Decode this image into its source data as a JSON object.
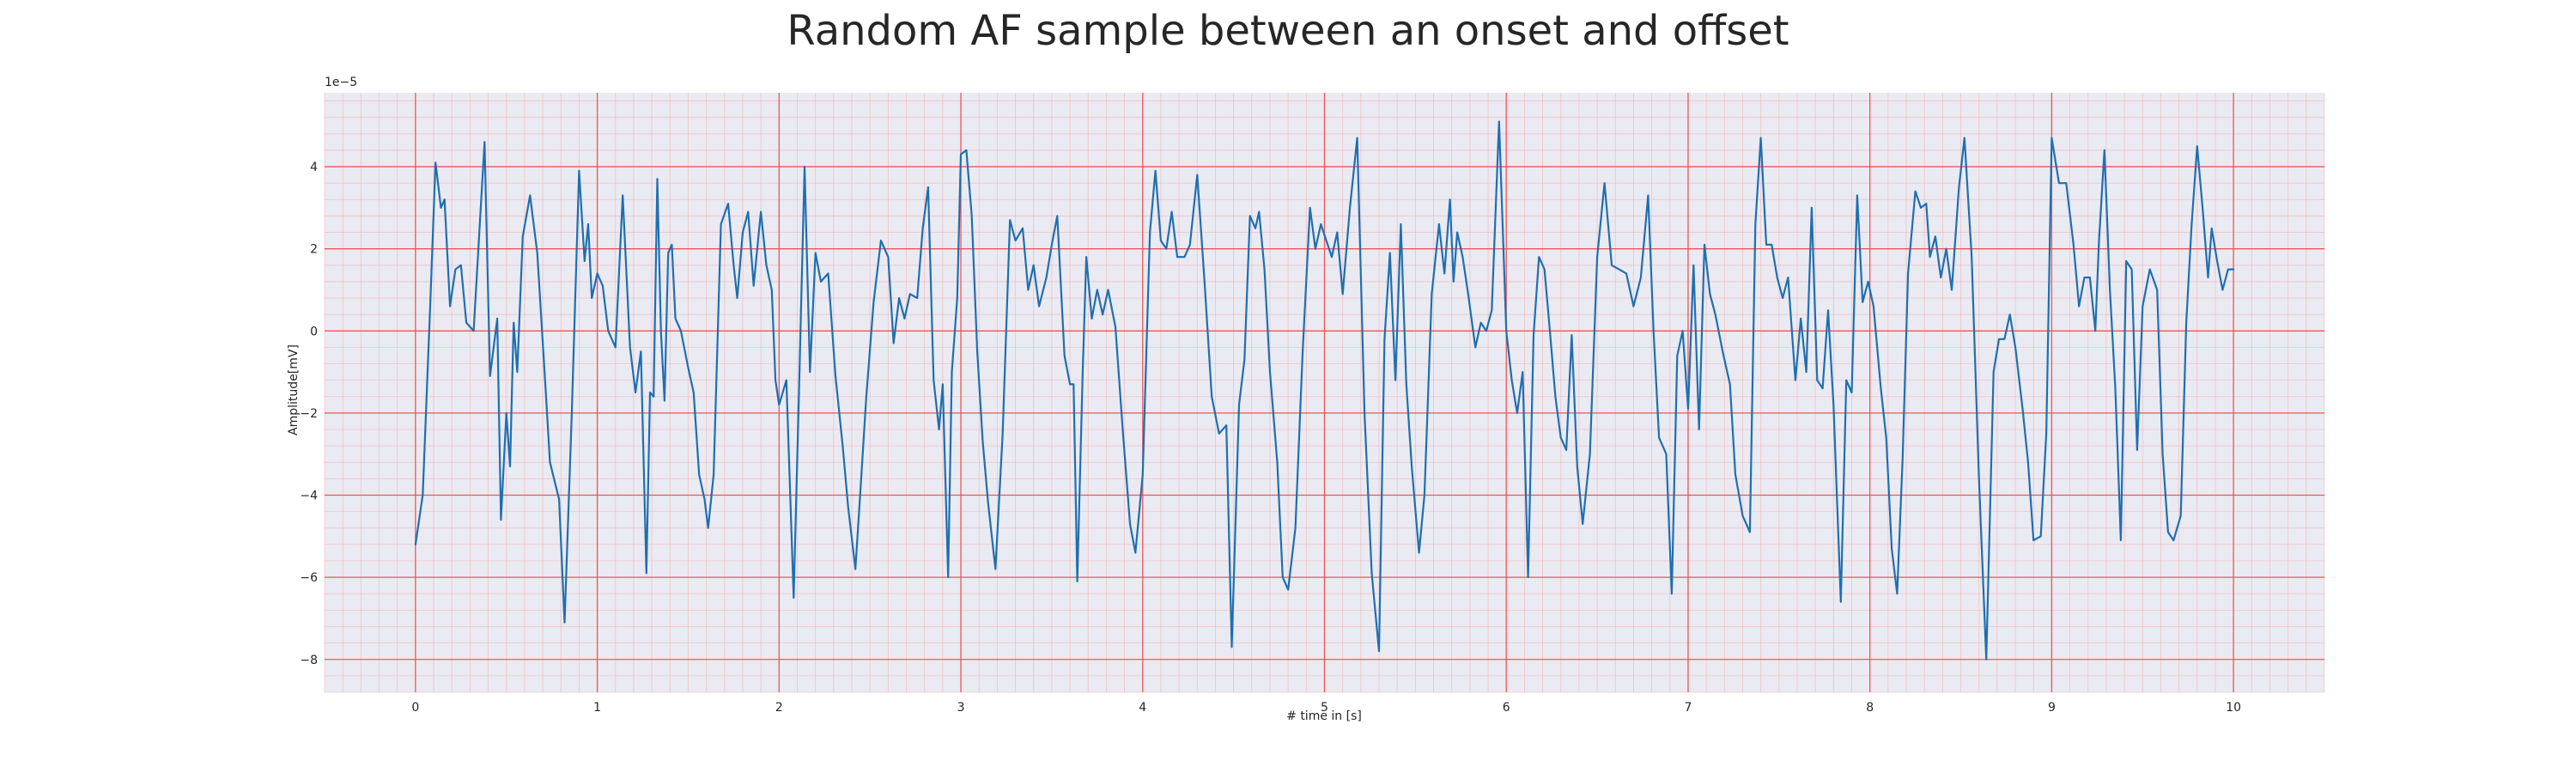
{
  "chart_data": {
    "type": "line",
    "title": "Random AF sample between an onset and offset",
    "xlabel": "# time in [s]",
    "ylabel": "Amplitude[mV]",
    "y_offset_label": "1e−5",
    "xlim": [
      -0.5,
      10.5
    ],
    "ylim": [
      -8.8,
      5.8
    ],
    "x_ticks": [
      0,
      1,
      2,
      3,
      4,
      5,
      6,
      7,
      8,
      9,
      10
    ],
    "y_ticks": [
      -8,
      -6,
      -4,
      -2,
      0,
      2,
      4
    ],
    "grid": true,
    "series": [
      {
        "color": "#1f6fb0",
        "points": [
          [
            0.0,
            -5.2
          ],
          [
            0.04,
            -4.0
          ],
          [
            0.08,
            0.5
          ],
          [
            0.11,
            4.1
          ],
          [
            0.14,
            3.0
          ],
          [
            0.16,
            3.2
          ],
          [
            0.19,
            0.6
          ],
          [
            0.22,
            1.5
          ],
          [
            0.25,
            1.6
          ],
          [
            0.28,
            0.2
          ],
          [
            0.32,
            0.0
          ],
          [
            0.38,
            4.6
          ],
          [
            0.41,
            -1.1
          ],
          [
            0.45,
            0.3
          ],
          [
            0.47,
            -4.6
          ],
          [
            0.5,
            -2.0
          ],
          [
            0.52,
            -3.3
          ],
          [
            0.54,
            0.2
          ],
          [
            0.56,
            -1.0
          ],
          [
            0.59,
            2.3
          ],
          [
            0.63,
            3.3
          ],
          [
            0.67,
            1.9
          ],
          [
            0.71,
            -1.0
          ],
          [
            0.74,
            -3.2
          ],
          [
            0.79,
            -4.1
          ],
          [
            0.82,
            -7.1
          ],
          [
            0.86,
            -2.0
          ],
          [
            0.9,
            3.9
          ],
          [
            0.93,
            1.7
          ],
          [
            0.95,
            2.6
          ],
          [
            0.97,
            0.8
          ],
          [
            1.0,
            1.4
          ],
          [
            1.03,
            1.1
          ],
          [
            1.06,
            0.0
          ],
          [
            1.1,
            -0.4
          ],
          [
            1.14,
            3.3
          ],
          [
            1.18,
            -0.4
          ],
          [
            1.21,
            -1.5
          ],
          [
            1.24,
            -0.5
          ],
          [
            1.27,
            -5.9
          ],
          [
            1.29,
            -1.5
          ],
          [
            1.31,
            -1.6
          ],
          [
            1.33,
            3.7
          ],
          [
            1.35,
            0.0
          ],
          [
            1.37,
            -1.7
          ],
          [
            1.39,
            1.9
          ],
          [
            1.41,
            2.1
          ],
          [
            1.43,
            0.3
          ],
          [
            1.46,
            0.0
          ],
          [
            1.5,
            -0.9
          ],
          [
            1.53,
            -1.5
          ],
          [
            1.56,
            -3.5
          ],
          [
            1.59,
            -4.1
          ],
          [
            1.61,
            -4.8
          ],
          [
            1.64,
            -3.5
          ],
          [
            1.68,
            2.6
          ],
          [
            1.72,
            3.1
          ],
          [
            1.75,
            1.6
          ],
          [
            1.77,
            0.8
          ],
          [
            1.8,
            2.4
          ],
          [
            1.83,
            2.9
          ],
          [
            1.86,
            1.1
          ],
          [
            1.9,
            2.9
          ],
          [
            1.93,
            1.6
          ],
          [
            1.96,
            1.0
          ],
          [
            1.98,
            -1.2
          ],
          [
            2.0,
            -1.8
          ],
          [
            2.04,
            -1.2
          ],
          [
            2.08,
            -6.5
          ],
          [
            2.11,
            -1.4
          ],
          [
            2.14,
            4.0
          ],
          [
            2.17,
            -1.0
          ],
          [
            2.2,
            1.9
          ],
          [
            2.23,
            1.2
          ],
          [
            2.27,
            1.4
          ],
          [
            2.31,
            -1.1
          ],
          [
            2.35,
            -2.8
          ],
          [
            2.38,
            -4.3
          ],
          [
            2.42,
            -5.8
          ],
          [
            2.45,
            -3.7
          ],
          [
            2.48,
            -1.6
          ],
          [
            2.52,
            0.7
          ],
          [
            2.56,
            2.2
          ],
          [
            2.6,
            1.8
          ],
          [
            2.63,
            -0.3
          ],
          [
            2.66,
            0.8
          ],
          [
            2.69,
            0.3
          ],
          [
            2.72,
            0.9
          ],
          [
            2.76,
            0.8
          ],
          [
            2.79,
            2.5
          ],
          [
            2.82,
            3.5
          ],
          [
            2.85,
            -1.2
          ],
          [
            2.88,
            -2.4
          ],
          [
            2.9,
            -1.3
          ],
          [
            2.93,
            -6.0
          ],
          [
            2.95,
            -1.0
          ],
          [
            2.98,
            0.8
          ],
          [
            3.0,
            4.3
          ],
          [
            3.03,
            4.4
          ],
          [
            3.06,
            2.8
          ],
          [
            3.09,
            -0.5
          ],
          [
            3.12,
            -2.7
          ],
          [
            3.15,
            -4.2
          ],
          [
            3.19,
            -5.8
          ],
          [
            3.23,
            -2.5
          ],
          [
            3.27,
            2.7
          ],
          [
            3.3,
            2.2
          ],
          [
            3.34,
            2.5
          ],
          [
            3.37,
            1.0
          ],
          [
            3.4,
            1.6
          ],
          [
            3.43,
            0.6
          ],
          [
            3.47,
            1.3
          ],
          [
            3.5,
            2.1
          ],
          [
            3.53,
            2.8
          ],
          [
            3.57,
            -0.6
          ],
          [
            3.6,
            -1.3
          ],
          [
            3.62,
            -1.3
          ],
          [
            3.64,
            -6.1
          ],
          [
            3.67,
            -1.0
          ],
          [
            3.69,
            1.8
          ],
          [
            3.72,
            0.3
          ],
          [
            3.75,
            1.0
          ],
          [
            3.78,
            0.4
          ],
          [
            3.81,
            1.0
          ],
          [
            3.85,
            0.1
          ],
          [
            3.89,
            -2.4
          ],
          [
            3.93,
            -4.7
          ],
          [
            3.96,
            -5.4
          ],
          [
            4.0,
            -3.5
          ],
          [
            4.04,
            2.4
          ],
          [
            4.07,
            3.9
          ],
          [
            4.1,
            2.2
          ],
          [
            4.13,
            2.0
          ],
          [
            4.16,
            2.9
          ],
          [
            4.19,
            1.8
          ],
          [
            4.23,
            1.8
          ],
          [
            4.26,
            2.1
          ],
          [
            4.3,
            3.8
          ],
          [
            4.34,
            1.2
          ],
          [
            4.38,
            -1.6
          ],
          [
            4.42,
            -2.5
          ],
          [
            4.46,
            -2.3
          ],
          [
            4.49,
            -7.7
          ],
          [
            4.53,
            -1.8
          ],
          [
            4.56,
            -0.7
          ],
          [
            4.59,
            2.8
          ],
          [
            4.62,
            2.5
          ],
          [
            4.64,
            2.9
          ],
          [
            4.67,
            1.5
          ],
          [
            4.7,
            -1.0
          ],
          [
            4.74,
            -3.2
          ],
          [
            4.77,
            -6.0
          ],
          [
            4.8,
            -6.3
          ],
          [
            4.84,
            -4.8
          ],
          [
            4.88,
            -0.5
          ],
          [
            4.92,
            3.0
          ],
          [
            4.95,
            2.0
          ],
          [
            4.98,
            2.6
          ],
          [
            5.01,
            2.2
          ],
          [
            5.04,
            1.8
          ],
          [
            5.07,
            2.4
          ],
          [
            5.1,
            0.9
          ],
          [
            5.14,
            3.0
          ],
          [
            5.18,
            4.7
          ],
          [
            5.22,
            -2.0
          ],
          [
            5.26,
            -5.9
          ],
          [
            5.3,
            -7.8
          ],
          [
            5.33,
            -0.2
          ],
          [
            5.36,
            1.9
          ],
          [
            5.39,
            -1.2
          ],
          [
            5.42,
            2.6
          ],
          [
            5.45,
            -1.3
          ],
          [
            5.48,
            -3.3
          ],
          [
            5.52,
            -5.4
          ],
          [
            5.55,
            -4.0
          ],
          [
            5.59,
            0.9
          ],
          [
            5.63,
            2.6
          ],
          [
            5.66,
            1.4
          ],
          [
            5.69,
            3.2
          ],
          [
            5.71,
            1.2
          ],
          [
            5.73,
            2.4
          ],
          [
            5.76,
            1.8
          ],
          [
            5.79,
            0.9
          ],
          [
            5.83,
            -0.4
          ],
          [
            5.86,
            0.2
          ],
          [
            5.89,
            0.0
          ],
          [
            5.92,
            0.5
          ],
          [
            5.96,
            5.1
          ],
          [
            6.0,
            0.0
          ],
          [
            6.03,
            -1.2
          ],
          [
            6.06,
            -2.0
          ],
          [
            6.09,
            -1.0
          ],
          [
            6.12,
            -6.0
          ],
          [
            6.15,
            -0.1
          ],
          [
            6.18,
            1.8
          ],
          [
            6.21,
            1.5
          ],
          [
            6.24,
            0.0
          ],
          [
            6.27,
            -1.6
          ],
          [
            6.3,
            -2.6
          ],
          [
            6.33,
            -2.9
          ],
          [
            6.36,
            -0.1
          ],
          [
            6.39,
            -3.3
          ],
          [
            6.42,
            -4.7
          ],
          [
            6.46,
            -3.0
          ],
          [
            6.5,
            1.8
          ],
          [
            6.54,
            3.6
          ],
          [
            6.58,
            1.6
          ],
          [
            6.62,
            1.5
          ],
          [
            6.66,
            1.4
          ],
          [
            6.7,
            0.6
          ],
          [
            6.74,
            1.3
          ],
          [
            6.78,
            3.3
          ],
          [
            6.81,
            0.0
          ],
          [
            6.84,
            -2.6
          ],
          [
            6.88,
            -3.0
          ],
          [
            6.91,
            -6.4
          ],
          [
            6.94,
            -0.6
          ],
          [
            6.97,
            0.0
          ],
          [
            7.0,
            -1.9
          ],
          [
            7.03,
            1.6
          ],
          [
            7.06,
            -2.4
          ],
          [
            7.09,
            2.1
          ],
          [
            7.12,
            0.9
          ],
          [
            7.15,
            0.4
          ],
          [
            7.19,
            -0.5
          ],
          [
            7.23,
            -1.3
          ],
          [
            7.26,
            -3.5
          ],
          [
            7.3,
            -4.5
          ],
          [
            7.34,
            -4.9
          ],
          [
            7.37,
            2.6
          ],
          [
            7.4,
            4.7
          ],
          [
            7.43,
            2.1
          ],
          [
            7.46,
            2.1
          ],
          [
            7.49,
            1.3
          ],
          [
            7.52,
            0.8
          ],
          [
            7.55,
            1.3
          ],
          [
            7.59,
            -1.2
          ],
          [
            7.62,
            0.3
          ],
          [
            7.65,
            -1.0
          ],
          [
            7.68,
            3.0
          ],
          [
            7.71,
            -1.2
          ],
          [
            7.74,
            -1.4
          ],
          [
            7.77,
            0.5
          ],
          [
            7.8,
            -1.8
          ],
          [
            7.84,
            -6.6
          ],
          [
            7.87,
            -1.2
          ],
          [
            7.9,
            -1.5
          ],
          [
            7.93,
            3.3
          ],
          [
            7.96,
            0.7
          ],
          [
            7.99,
            1.2
          ],
          [
            8.02,
            0.6
          ],
          [
            8.06,
            -1.4
          ],
          [
            8.09,
            -2.6
          ],
          [
            8.12,
            -5.3
          ],
          [
            8.15,
            -6.4
          ],
          [
            8.18,
            -3.1
          ],
          [
            8.21,
            1.4
          ],
          [
            8.25,
            3.4
          ],
          [
            8.28,
            3.0
          ],
          [
            8.31,
            3.1
          ],
          [
            8.33,
            1.8
          ],
          [
            8.36,
            2.3
          ],
          [
            8.39,
            1.3
          ],
          [
            8.42,
            2.0
          ],
          [
            8.45,
            1.0
          ],
          [
            8.49,
            3.5
          ],
          [
            8.52,
            4.7
          ],
          [
            8.56,
            1.8
          ],
          [
            8.6,
            -3.6
          ],
          [
            8.64,
            -8.0
          ],
          [
            8.68,
            -1.0
          ],
          [
            8.71,
            -0.2
          ],
          [
            8.74,
            -0.2
          ],
          [
            8.77,
            0.4
          ],
          [
            8.8,
            -0.4
          ],
          [
            8.84,
            -1.9
          ],
          [
            8.87,
            -3.2
          ],
          [
            8.9,
            -5.1
          ],
          [
            8.94,
            -5.0
          ],
          [
            8.97,
            -2.5
          ],
          [
            9.0,
            4.7
          ],
          [
            9.04,
            3.6
          ],
          [
            9.08,
            3.6
          ],
          [
            9.12,
            2.1
          ],
          [
            9.15,
            0.6
          ],
          [
            9.18,
            1.3
          ],
          [
            9.21,
            1.3
          ],
          [
            9.24,
            0.0
          ],
          [
            9.26,
            2.2
          ],
          [
            9.29,
            4.4
          ],
          [
            9.32,
            1.0
          ],
          [
            9.35,
            -1.4
          ],
          [
            9.38,
            -5.1
          ],
          [
            9.41,
            1.7
          ],
          [
            9.44,
            1.5
          ],
          [
            9.47,
            -2.9
          ],
          [
            9.5,
            0.6
          ],
          [
            9.54,
            1.5
          ],
          [
            9.58,
            1.0
          ],
          [
            9.61,
            -3.0
          ],
          [
            9.64,
            -4.9
          ],
          [
            9.67,
            -5.1
          ],
          [
            9.71,
            -4.5
          ],
          [
            9.74,
            0.2
          ],
          [
            9.77,
            2.6
          ],
          [
            9.8,
            4.5
          ],
          [
            9.83,
            3.0
          ],
          [
            9.86,
            1.3
          ],
          [
            9.88,
            2.5
          ],
          [
            9.91,
            1.7
          ],
          [
            9.94,
            1.0
          ],
          [
            9.97,
            1.5
          ],
          [
            10.0,
            1.5
          ]
        ]
      }
    ]
  }
}
